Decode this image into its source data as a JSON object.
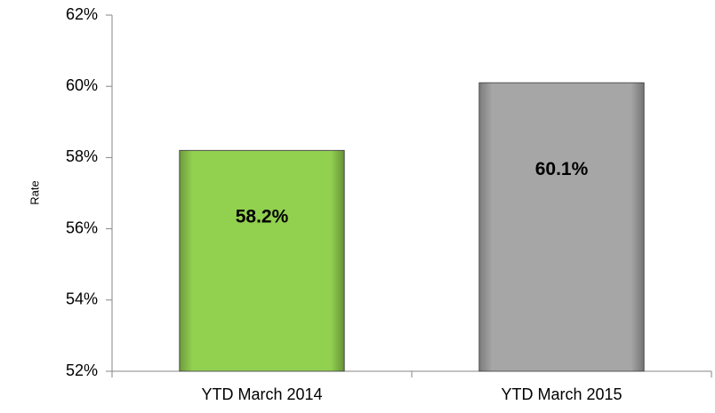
{
  "chart_data": {
    "type": "bar",
    "y_label": "Rate",
    "categories": [
      "YTD March 2014",
      "YTD March 2015"
    ],
    "values": [
      58.2,
      60.1
    ],
    "value_labels": [
      "58.2%",
      "60.1%"
    ],
    "colors": [
      "#92d050",
      "#a6a6a6"
    ],
    "ylim": [
      52,
      62
    ],
    "yticks": [
      {
        "value": 52,
        "label": "52%"
      },
      {
        "value": 54,
        "label": "54%"
      },
      {
        "value": 56,
        "label": "56%"
      },
      {
        "value": 58,
        "label": "58%"
      },
      {
        "value": 60,
        "label": "60%"
      },
      {
        "value": 62,
        "label": "62%"
      }
    ],
    "grid": false
  }
}
